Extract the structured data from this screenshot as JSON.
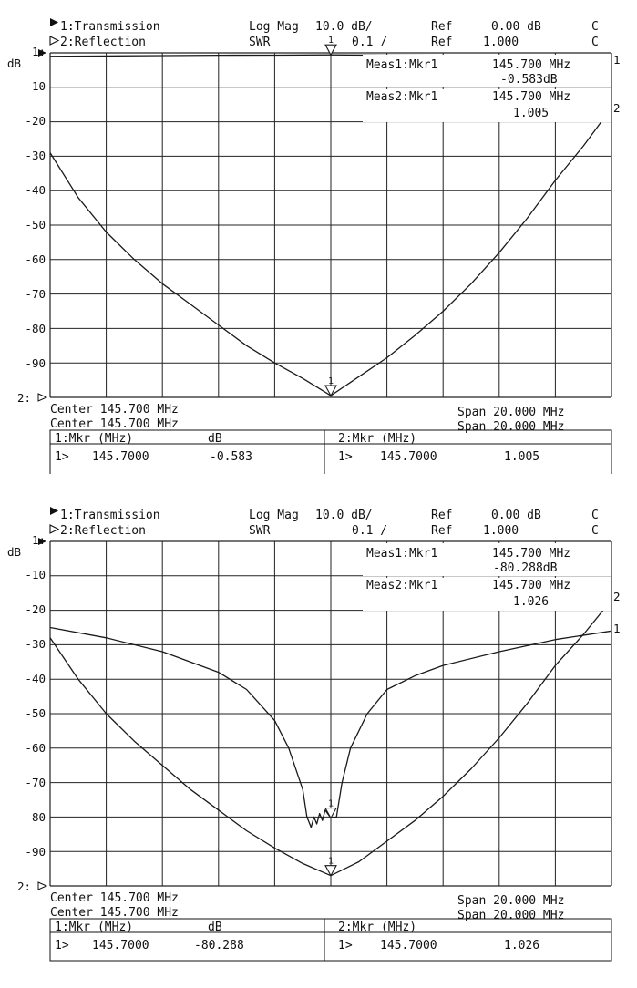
{
  "colors": {
    "trace": "#1a1a1a",
    "grid": "#222222",
    "background": "#ffffff"
  },
  "chart_data": [
    {
      "type": "line",
      "header": {
        "ch1": "1:Transmission",
        "ch2": "2:Reflection",
        "format1": "Log Mag",
        "scale1": "10.0 dB/",
        "ref1_label": "Ref",
        "ref1": "0.00 dB",
        "flag1": "C",
        "format2": "SWR",
        "scale2": "0.1  /",
        "ref2_label": "Ref",
        "ref2": "1.000",
        "flag2": "C"
      },
      "ylabel": "dB",
      "y_ticks": [
        "1:",
        "-10",
        "-20",
        "-30",
        "-40",
        "-50",
        "-60",
        "-70",
        "-80",
        "-90",
        "2:"
      ],
      "ylim": [
        -100,
        0
      ],
      "grid": true,
      "meas": [
        {
          "label": "Meas1:Mkr1",
          "freq": "145.700 MHz",
          "value": "-0.583dB"
        },
        {
          "label": "Meas2:Mkr1",
          "freq": "145.700 MHz",
          "value": "1.005"
        }
      ],
      "footer": {
        "center1": "Center 145.700 MHz",
        "span1": "Span 20.000 MHz",
        "center2": "Center 145.700 MHz",
        "span2": "Span 20.000 MHz"
      },
      "table": {
        "ch1_header": "1:Mkr (MHz)",
        "ch1_unit": "dB",
        "ch1_row": {
          "mk": "1>",
          "freq": "145.7000",
          "value": "-0.583"
        },
        "ch2_header": "2:Mkr (MHz)",
        "ch2_row": {
          "mk": "1>",
          "freq": "145.7000",
          "value": "1.005"
        }
      },
      "x_range_mhz": [
        135.7,
        155.7
      ],
      "series": [
        {
          "end_label": "1",
          "values_db": [
            [
              135.7,
              -1.0
            ],
            [
              137.7,
              -0.9
            ],
            [
              139.7,
              -0.8
            ],
            [
              141.7,
              -0.7
            ],
            [
              143.7,
              -0.65
            ],
            [
              145.7,
              -0.58
            ],
            [
              147.7,
              -0.65
            ],
            [
              149.7,
              -0.7
            ],
            [
              151.7,
              -0.8
            ],
            [
              153.7,
              -0.9
            ],
            [
              155.7,
              -1.0
            ]
          ]
        },
        {
          "end_label": "2",
          "values_db": [
            [
              135.7,
              -29
            ],
            [
              136.7,
              -42
            ],
            [
              137.7,
              -52
            ],
            [
              138.7,
              -60
            ],
            [
              139.7,
              -67
            ],
            [
              140.7,
              -73
            ],
            [
              141.7,
              -79
            ],
            [
              142.7,
              -85
            ],
            [
              143.7,
              -90
            ],
            [
              144.7,
              -94.5
            ],
            [
              145.7,
              -99.5
            ],
            [
              146.7,
              -94
            ],
            [
              147.7,
              -88.5
            ],
            [
              148.7,
              -82
            ],
            [
              149.7,
              -75
            ],
            [
              150.7,
              -67
            ],
            [
              151.7,
              -58
            ],
            [
              152.7,
              -48
            ],
            [
              153.7,
              -37
            ],
            [
              154.7,
              -27
            ],
            [
              155.7,
              -16
            ]
          ]
        }
      ],
      "markers": [
        {
          "number": "1",
          "x_mhz": 145.7,
          "value_db": -0.58
        },
        {
          "number": "1",
          "x_mhz": 145.7,
          "value_db": -99.5
        }
      ]
    },
    {
      "type": "line",
      "header": {
        "ch1": "1:Transmission",
        "ch2": "2:Reflection",
        "format1": "Log Mag",
        "scale1": "10.0 dB/",
        "ref1_label": "Ref",
        "ref1": "0.00 dB",
        "flag1": "C",
        "format2": "SWR",
        "scale2": "0.1  /",
        "ref2_label": "Ref",
        "ref2": "1.000",
        "flag2": "C"
      },
      "ylabel": "dB",
      "y_ticks": [
        "1:",
        "-10",
        "-20",
        "-30",
        "-40",
        "-50",
        "-60",
        "-70",
        "-80",
        "-90",
        "2:"
      ],
      "ylim": [
        -100,
        0
      ],
      "grid": true,
      "meas": [
        {
          "label": "Meas1:Mkr1",
          "freq": "145.700 MHz",
          "value": "-80.288dB"
        },
        {
          "label": "Meas2:Mkr1",
          "freq": "145.700 MHz",
          "value": "1.026"
        }
      ],
      "footer": {
        "center1": "Center 145.700 MHz",
        "span1": "Span 20.000 MHz",
        "center2": "Center 145.700 MHz",
        "span2": "Span 20.000 MHz"
      },
      "table": {
        "ch1_header": "1:Mkr (MHz)",
        "ch1_unit": "dB",
        "ch1_row": {
          "mk": "1>",
          "freq": "145.7000",
          "value": "-80.288"
        },
        "ch2_header": "2:Mkr (MHz)",
        "ch2_row": {
          "mk": "1>",
          "freq": "145.7000",
          "value": "1.026"
        }
      },
      "x_range_mhz": [
        135.7,
        155.7
      ],
      "series": [
        {
          "end_label": "1",
          "values_db": [
            [
              135.7,
              -25
            ],
            [
              137.7,
              -28
            ],
            [
              139.7,
              -32
            ],
            [
              141.7,
              -38
            ],
            [
              142.7,
              -43
            ],
            [
              143.7,
              -52
            ],
            [
              144.2,
              -60
            ],
            [
              144.7,
              -72
            ],
            [
              144.85,
              -80
            ],
            [
              145.0,
              -83
            ],
            [
              145.1,
              -80
            ],
            [
              145.2,
              -82
            ],
            [
              145.3,
              -79
            ],
            [
              145.4,
              -81
            ],
            [
              145.5,
              -78
            ],
            [
              145.7,
              -80.3
            ],
            [
              145.9,
              -80
            ],
            [
              146.1,
              -70
            ],
            [
              146.4,
              -60
            ],
            [
              147.0,
              -50
            ],
            [
              147.7,
              -43
            ],
            [
              148.7,
              -39
            ],
            [
              149.7,
              -36
            ],
            [
              151.7,
              -32
            ],
            [
              153.7,
              -28.5
            ],
            [
              155.7,
              -26
            ]
          ]
        },
        {
          "end_label": "2",
          "values_db": [
            [
              135.7,
              -28
            ],
            [
              136.7,
              -40
            ],
            [
              137.7,
              -50
            ],
            [
              138.7,
              -58
            ],
            [
              139.7,
              -65
            ],
            [
              140.7,
              -72
            ],
            [
              141.7,
              -78
            ],
            [
              142.7,
              -84
            ],
            [
              143.7,
              -89
            ],
            [
              144.7,
              -93.5
            ],
            [
              145.7,
              -97
            ],
            [
              146.7,
              -93
            ],
            [
              147.7,
              -87
            ],
            [
              148.7,
              -81
            ],
            [
              149.7,
              -74
            ],
            [
              150.7,
              -66
            ],
            [
              151.7,
              -57
            ],
            [
              152.7,
              -47
            ],
            [
              153.7,
              -36
            ],
            [
              154.7,
              -27
            ],
            [
              155.7,
              -17
            ]
          ]
        }
      ],
      "markers": [
        {
          "number": "1",
          "x_mhz": 145.7,
          "value_db": -80.3
        },
        {
          "number": "1",
          "x_mhz": 145.7,
          "value_db": -97
        }
      ]
    }
  ]
}
